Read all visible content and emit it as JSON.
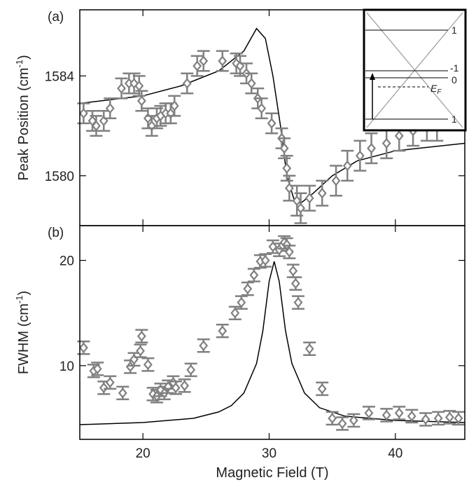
{
  "chart_data": [
    {
      "type": "scatter",
      "panel_label": "(a)",
      "ylabel": "Peak Position (cm",
      "ylabel_sup": "-1",
      "ylabel_end": ")",
      "xlim": [
        15,
        45.5
      ],
      "xticks": [
        20,
        30,
        40
      ],
      "ylim": [
        1578,
        1586.65
      ],
      "yticks": [
        1580,
        1584
      ],
      "points": {
        "color": "#808080",
        "x": [
          15.3,
          16.0,
          16.3,
          16.9,
          17.4,
          18.3,
          18.9,
          19.3,
          19.7,
          19.9,
          20.4,
          20.7,
          21.1,
          21.4,
          21.8,
          22.2,
          22.5,
          23.5,
          24.3,
          24.8,
          26.3,
          27.4,
          27.7,
          28.2,
          28.6,
          29.1,
          29.4,
          30.2,
          31.0,
          31.2,
          31.4,
          31.6,
          32.2,
          32.5,
          33.2,
          34.2,
          35.3,
          36.2,
          37.2,
          38.1,
          39.3,
          40.3,
          41.4,
          42.5,
          43.3
        ],
        "values": [
          1582.5,
          1582.2,
          1582.0,
          1582.2,
          1582.7,
          1583.5,
          1583.7,
          1583.7,
          1583.6,
          1583.0,
          1582.3,
          1582.0,
          1582.3,
          1582.4,
          1582.5,
          1582.5,
          1582.8,
          1583.7,
          1584.4,
          1584.6,
          1584.6,
          1584.5,
          1584.4,
          1584.1,
          1583.7,
          1583.1,
          1582.7,
          1582.1,
          1581.5,
          1581.1,
          1580.3,
          1579.5,
          1579.0,
          1578.7,
          1579.1,
          1579.3,
          1579.8,
          1580.4,
          1580.8,
          1581.1,
          1581.3,
          1581.6,
          1581.8,
          1582.0,
          1582.0
        ],
        "errors": [
          0.4,
          0.4,
          0.4,
          0.4,
          0.4,
          0.4,
          0.4,
          0.4,
          0.4,
          0.4,
          0.4,
          0.4,
          0.4,
          0.4,
          0.4,
          0.4,
          0.4,
          0.4,
          0.4,
          0.4,
          0.4,
          0.4,
          0.4,
          0.4,
          0.4,
          0.4,
          0.4,
          0.4,
          0.4,
          0.4,
          0.5,
          0.5,
          0.6,
          0.6,
          0.5,
          0.5,
          0.6,
          0.6,
          0.6,
          0.6,
          0.6,
          0.6,
          0.6,
          0.6,
          0.6
        ]
      },
      "fit": {
        "color": "#000000",
        "x": [
          15,
          20,
          23,
          26,
          28,
          29,
          29.7,
          30.3,
          30.9,
          31.4,
          32,
          32.5,
          33.5,
          35,
          37,
          40,
          45.5
        ],
        "values": [
          1582.9,
          1583.2,
          1583.6,
          1584.2,
          1585.0,
          1585.9,
          1585.5,
          1584.0,
          1582.0,
          1580.0,
          1579.0,
          1578.9,
          1579.3,
          1580.0,
          1580.6,
          1581.0,
          1581.3
        ]
      },
      "inset_labels": [
        "1",
        "-1",
        "0",
        "1"
      ],
      "fermi_label": "E",
      "fermi_sub": "F"
    },
    {
      "type": "scatter",
      "panel_label": "(b)",
      "ylabel": "FWHM (cm",
      "ylabel_sup": "-1",
      "ylabel_end": ")",
      "xlabel": "Magnetic Field (T)",
      "xlim": [
        15,
        45.5
      ],
      "xticks": [
        20,
        30,
        40
      ],
      "ylim": [
        3,
        23.3
      ],
      "yticks": [
        10,
        20
      ],
      "points": {
        "color": "#808080",
        "x": [
          15.3,
          16.1,
          16.4,
          16.9,
          17.4,
          18.4,
          19.0,
          19.3,
          19.8,
          19.9,
          20.4,
          20.8,
          21.1,
          21.4,
          21.7,
          22.0,
          22.4,
          22.6,
          23.3,
          23.8,
          24.8,
          26.3,
          27.3,
          27.8,
          28.3,
          28.8,
          29.3,
          29.7,
          30.3,
          30.8,
          31.2,
          31.4,
          31.6,
          31.9,
          32.1,
          32.3,
          33.2,
          34.2,
          35.0,
          35.8,
          36.7,
          37.9,
          39.3,
          40.3,
          41.3,
          42.4,
          43.4,
          44.3,
          45.0
        ],
        "values": [
          11.7,
          9.5,
          9.7,
          7.9,
          8.4,
          7.4,
          9.9,
          10.6,
          11.4,
          12.8,
          10.1,
          7.3,
          7.1,
          7.7,
          7.4,
          8.0,
          8.4,
          7.9,
          8.1,
          9.6,
          11.9,
          13.3,
          15.0,
          16.0,
          17.3,
          18.6,
          19.9,
          20.0,
          21.3,
          21.0,
          21.7,
          21.5,
          20.8,
          19.0,
          17.8,
          16.0,
          11.6,
          7.8,
          5.0,
          4.5,
          4.8,
          5.5,
          5.3,
          5.5,
          5.2,
          4.9,
          5.0,
          5.1,
          5.0
        ],
        "errors": [
          0.6,
          0.6,
          0.6,
          0.6,
          0.6,
          0.6,
          0.6,
          0.6,
          0.6,
          0.6,
          0.6,
          0.6,
          0.6,
          0.6,
          0.6,
          0.6,
          0.6,
          0.6,
          0.6,
          0.6,
          0.6,
          0.6,
          0.6,
          0.6,
          0.6,
          0.6,
          0.6,
          0.6,
          0.6,
          0.6,
          0.6,
          0.6,
          0.6,
          0.6,
          0.6,
          0.6,
          0.6,
          0.6,
          0.6,
          0.6,
          0.6,
          0.6,
          0.6,
          0.6,
          0.6,
          0.6,
          0.6,
          0.6,
          0.6
        ]
      },
      "fit": {
        "color": "#000000",
        "x": [
          15,
          20,
          24,
          26,
          27,
          28,
          29,
          29.5,
          30,
          30.4,
          30.8,
          31.3,
          31.8,
          32.8,
          34,
          36,
          40,
          45.5
        ],
        "values": [
          4.4,
          4.6,
          5.0,
          5.6,
          6.2,
          7.4,
          10.2,
          13.3,
          18.0,
          19.9,
          18.0,
          13.3,
          10.2,
          7.4,
          6.0,
          5.2,
          4.8,
          4.6
        ]
      }
    }
  ]
}
